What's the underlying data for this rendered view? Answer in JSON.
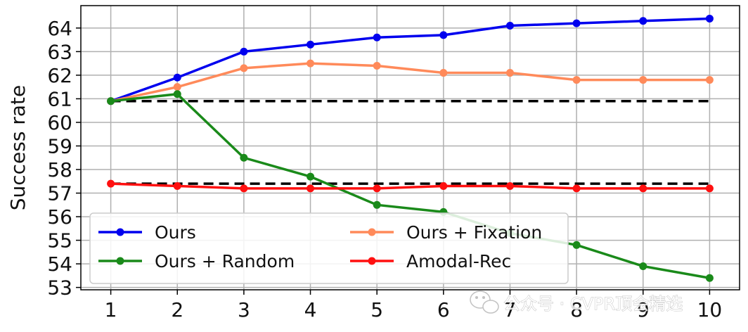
{
  "chart_data": {
    "type": "line",
    "title": "",
    "xlabel": "",
    "ylabel": "Success rate",
    "x": [
      1,
      2,
      3,
      4,
      5,
      6,
      7,
      8,
      9,
      10
    ],
    "xlim": [
      0.55,
      10.45
    ],
    "ylim": [
      52.9,
      64.95
    ],
    "xticks": [
      "1",
      "2",
      "3",
      "4",
      "5",
      "6",
      "7",
      "8",
      "9",
      "10"
    ],
    "yticks": [
      "53",
      "54",
      "55",
      "56",
      "57",
      "58",
      "59",
      "60",
      "61",
      "62",
      "63",
      "64"
    ],
    "grid": true,
    "legend_position": "lower-left",
    "legend_columns": 2,
    "series": [
      {
        "name": "Ours",
        "color": "#0000ee",
        "values": [
          60.9,
          61.9,
          63.0,
          63.3,
          63.6,
          63.7,
          64.1,
          64.2,
          64.3,
          64.4
        ]
      },
      {
        "name": "Ours + Fixation",
        "color": "#ff8a5a",
        "values": [
          60.9,
          61.5,
          62.3,
          62.5,
          62.4,
          62.1,
          62.1,
          61.8,
          61.8,
          61.8
        ]
      },
      {
        "name": "Ours + Random",
        "color": "#1a8a1a",
        "values": [
          60.9,
          61.2,
          58.5,
          57.7,
          56.5,
          56.2,
          55.3,
          54.8,
          53.9,
          53.4
        ]
      },
      {
        "name": "Amodal-Rec",
        "color": "#ff1010",
        "values": [
          57.4,
          57.3,
          57.2,
          57.2,
          57.2,
          57.3,
          57.3,
          57.2,
          57.2,
          57.2
        ]
      }
    ],
    "reference_lines": [
      {
        "y": 60.9,
        "color": "#000000",
        "style": "dashed"
      },
      {
        "y": 57.4,
        "color": "#000000",
        "style": "dashed"
      }
    ]
  },
  "watermark": {
    "text": "公众号 · CVPR顶会精选",
    "icon": "wechat-icon"
  }
}
